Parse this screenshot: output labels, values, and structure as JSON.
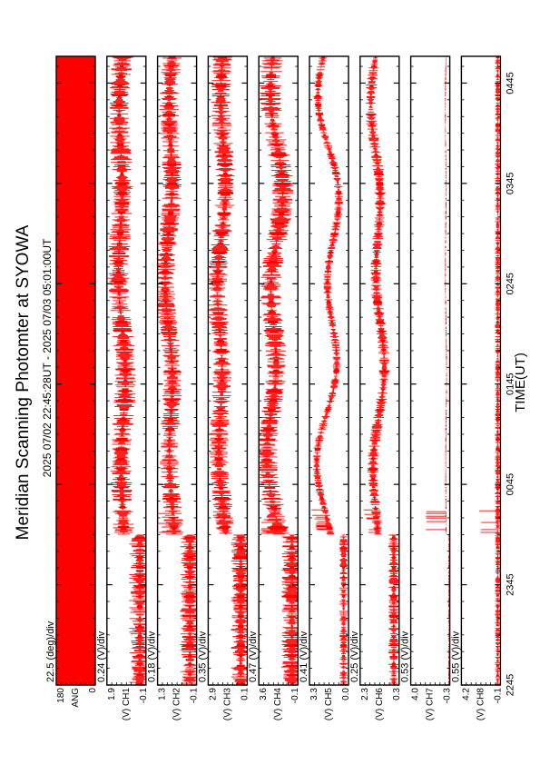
{
  "chart_data": {
    "type": "line",
    "title": "Meridian Scanning Photomter at SYOWA",
    "subtitle": "2025 07/02 22:45:28UT - 2025 07/03 05:01:00UT",
    "xlabel": "TIME(UT)",
    "x_tick_labels": [
      "2245",
      "2345",
      "0045",
      "0145",
      "0245",
      "0345",
      "0445"
    ],
    "x_range_minutes_from_2245": [
      0,
      376
    ],
    "grid": false,
    "colors": {
      "trace": "#ff0000",
      "axis": "#000000",
      "background": "#ffffff"
    },
    "panels": [
      {
        "id": "angle",
        "label": "ANG",
        "scale": "22.5 (deg)/div",
        "ticks": [
          "180",
          "",
          "0"
        ],
        "ylim": [
          0,
          180
        ],
        "fill": true
      },
      {
        "id": "ch1",
        "label": "(V)",
        "scale": "0.24 (V)/div",
        "ticks": [
          "1.9",
          "CH1",
          "-0.1"
        ],
        "ylim": [
          -0.1,
          1.9
        ],
        "base": 0.62,
        "amp": 0.55,
        "wave": 0.06,
        "onset": 0.24,
        "spike": 0.0
      },
      {
        "id": "ch2",
        "label": "(V)",
        "scale": "0.18 (V)/div",
        "ticks": [
          "1.3",
          "CH2",
          "-0.1"
        ],
        "ylim": [
          -0.1,
          1.3
        ],
        "base": 0.68,
        "amp": 0.5,
        "wave": 0.07,
        "onset": 0.24,
        "spike": 0.15
      },
      {
        "id": "ch3",
        "label": "(V)",
        "scale": "0.35 (V)/div",
        "ticks": [
          "2.9",
          "CH3",
          "0.1"
        ],
        "ylim": [
          0.1,
          2.9
        ],
        "base": 0.66,
        "amp": 0.5,
        "wave": 0.07,
        "onset": 0.24,
        "spike": 0.12
      },
      {
        "id": "ch4",
        "label": "(V)",
        "scale": "0.47 (V)/div",
        "ticks": [
          "3.6",
          "CH4",
          "-0.1"
        ],
        "ylim": [
          -0.1,
          3.6
        ],
        "base": 0.6,
        "amp": 0.55,
        "wave": 0.12,
        "onset": 0.24,
        "spike": 0.2
      },
      {
        "id": "ch5",
        "label": "(V)",
        "scale": "0.41 (V)/div",
        "ticks": [
          "3.3",
          "CH5",
          "0.0"
        ],
        "ylim": [
          0.0,
          3.3
        ],
        "base": 0.5,
        "amp": 0.22,
        "wave": 0.18,
        "onset": 0.24,
        "spike": 0.25
      },
      {
        "id": "ch6",
        "label": "(V)",
        "scale": "0.25 (V)/div",
        "ticks": [
          "2.3",
          "CH6",
          "0.3"
        ],
        "ylim": [
          0.3,
          2.3
        ],
        "base": 0.55,
        "amp": 0.28,
        "wave": 0.1,
        "onset": 0.24,
        "spike": 0.2
      },
      {
        "id": "ch7",
        "label": "(V)",
        "scale": "0.53 (V)/div",
        "ticks": [
          "4.0",
          "CH7",
          "-0.3"
        ],
        "ylim": [
          -0.3,
          4.0
        ],
        "base": 0.1,
        "amp": 0.03,
        "wave": 0.01,
        "onset": 0.24,
        "spike": 0.5
      },
      {
        "id": "ch8",
        "label": "(V)",
        "scale": "0.55 (V)/div",
        "ticks": [
          "4.2",
          "CH8",
          "-0.1"
        ],
        "ylim": [
          -0.1,
          4.2
        ],
        "base": 0.07,
        "amp": 0.14,
        "wave": 0.0,
        "onset": 0.0,
        "spike": 0.4
      }
    ]
  }
}
